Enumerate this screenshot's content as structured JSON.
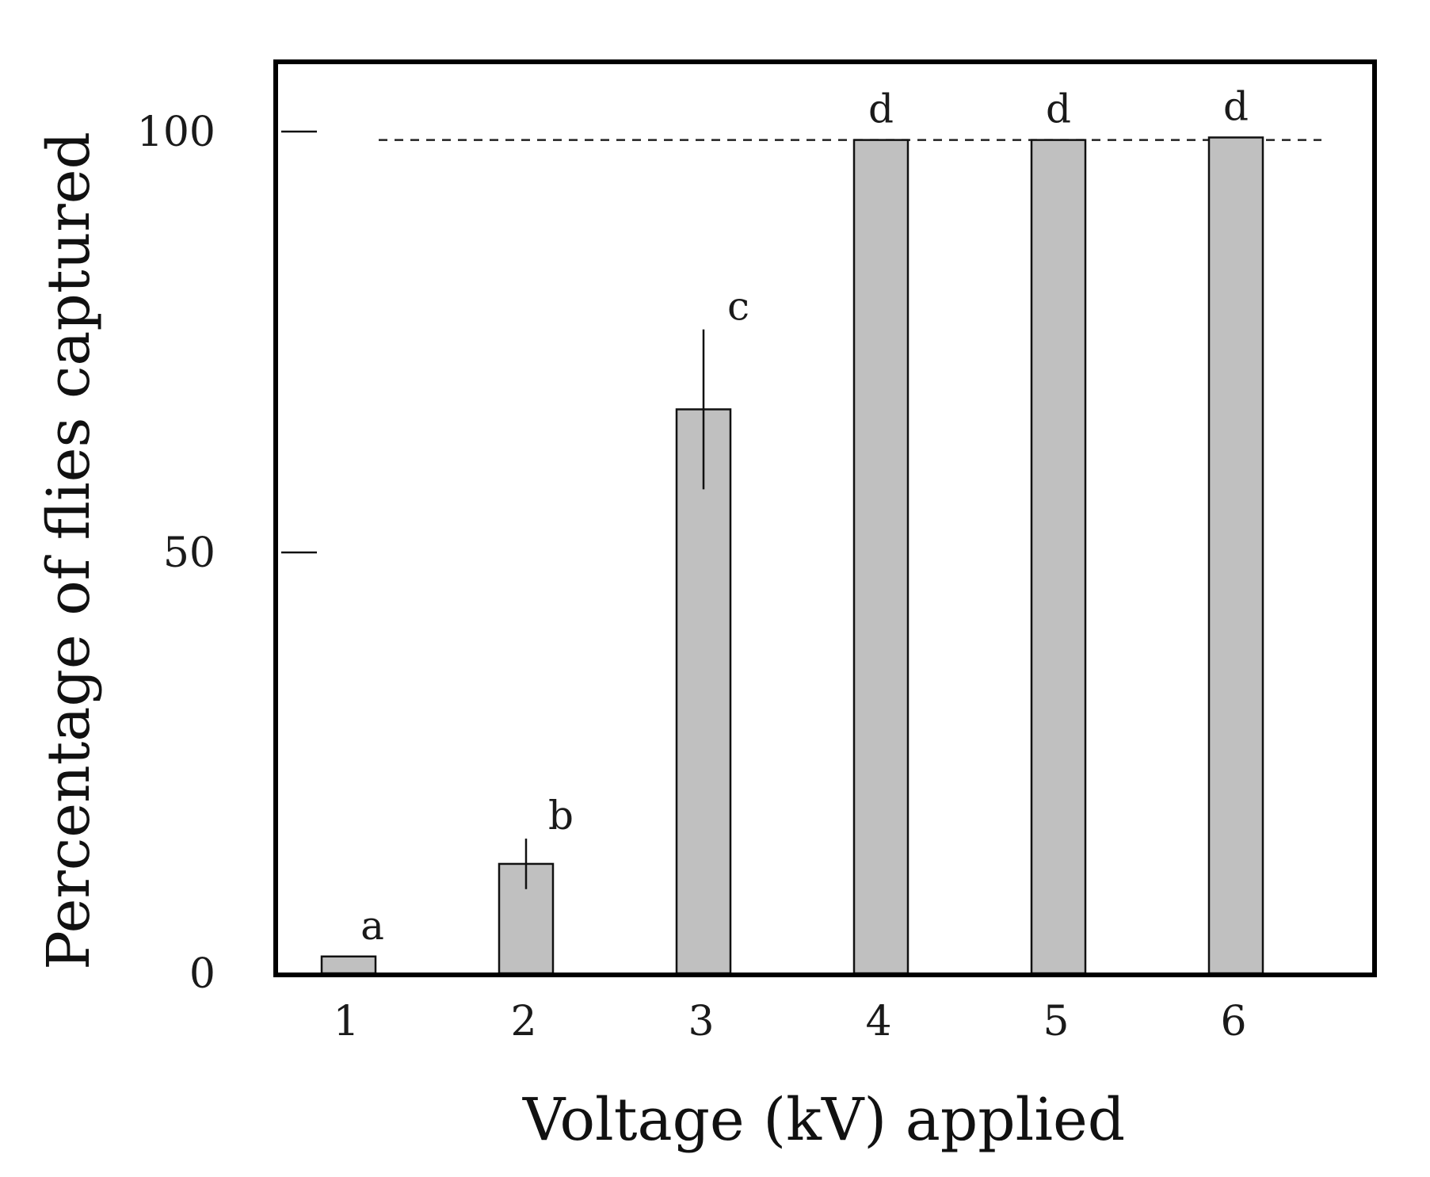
{
  "chart_data": {
    "type": "bar",
    "title": "",
    "xlabel": "Voltage (kV) applied",
    "ylabel": "Percentage of flies captured",
    "categories": [
      "1",
      "2",
      "3",
      "4",
      "5",
      "6"
    ],
    "values": [
      2,
      13,
      67,
      99,
      99,
      99.3
    ],
    "error": [
      0,
      3,
      9.5,
      0,
      0,
      0
    ],
    "letters": [
      "a",
      "b",
      "c",
      "d",
      "d",
      "d"
    ],
    "yticks": [
      0,
      50,
      100
    ],
    "ytick_labels": [
      "0",
      "50",
      "100"
    ],
    "ylim": [
      0,
      107.5
    ],
    "reference_line": {
      "y": 99,
      "style": "dashed"
    },
    "bar_color": "#c0c0c0",
    "grid": false,
    "legend": false
  }
}
